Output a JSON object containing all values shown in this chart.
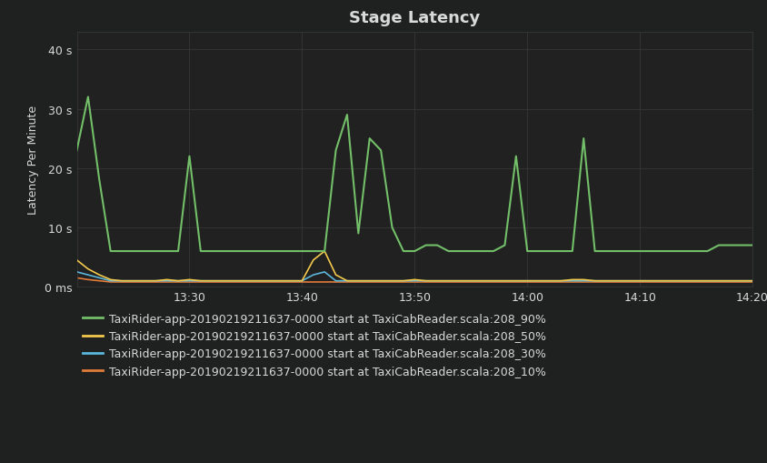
{
  "title": "Stage Latency",
  "ylabel": "Latency Per Minute",
  "background_color": "#1f2020",
  "plot_bg_color": "#212121",
  "grid_color": "#3a3a3a",
  "text_color": "#d8d9d9",
  "title_fontsize": 13,
  "label_fontsize": 9,
  "tick_fontsize": 9,
  "legend_fontsize": 9,
  "yticks": [
    0,
    10,
    20,
    30,
    40
  ],
  "ytick_labels": [
    "0 ms",
    "10 s",
    "20 s",
    "30 s",
    "40 s"
  ],
  "xtick_labels": [
    "13:30",
    "13:40",
    "13:50",
    "14:00",
    "14:10",
    "14:20"
  ],
  "ylim": [
    0,
    43
  ],
  "colors": {
    "p90": "#73bf69",
    "p50": "#f2c94c",
    "p30": "#5bb7db",
    "p10": "#e07b39"
  },
  "labels": {
    "p90": "TaxiRider-app-20190219211637-0000 start at TaxiCabReader.scala:208_90%",
    "p50": "TaxiRider-app-20190219211637-0000 start at TaxiCabReader.scala:208_50%",
    "p30": "TaxiRider-app-20190219211637-0000 start at TaxiCabReader.scala:208_30%",
    "p10": "TaxiRider-app-20190219211637-0000 start at TaxiCabReader.scala:208_10%"
  },
  "p90": [
    23,
    32,
    18,
    6,
    6,
    6,
    6,
    6,
    6,
    6,
    22,
    6,
    6,
    6,
    6,
    6,
    6,
    6,
    6,
    6,
    6,
    6,
    6,
    23,
    29,
    9,
    25,
    23,
    10,
    6,
    6,
    7,
    7,
    6,
    6,
    6,
    6,
    6,
    7,
    22,
    6,
    6,
    6,
    6,
    6,
    25,
    6,
    6,
    6,
    6,
    6,
    6,
    6,
    6,
    6,
    6,
    6,
    7,
    7,
    7,
    7
  ],
  "p50": [
    4.5,
    3,
    2,
    1.2,
    1,
    1,
    1,
    1,
    1.2,
    1,
    1.2,
    1,
    1,
    1,
    1,
    1,
    1,
    1,
    1,
    1,
    1,
    4.5,
    6,
    2,
    1,
    1,
    1,
    1,
    1,
    1,
    1.2,
    1,
    1,
    1,
    1,
    1,
    1,
    1,
    1,
    1,
    1,
    1,
    1,
    1,
    1.2,
    1.2,
    1,
    1,
    1,
    1,
    1,
    1,
    1,
    1,
    1,
    1,
    1,
    1,
    1,
    1,
    1
  ],
  "p30": [
    2.5,
    2,
    1.5,
    1,
    1,
    1,
    1,
    1,
    1,
    1,
    1,
    1,
    1,
    1,
    1,
    1,
    1,
    1,
    1,
    1,
    1,
    2,
    2.5,
    1,
    1,
    1,
    1,
    1,
    1,
    1,
    1,
    1,
    1,
    1,
    1,
    1,
    1,
    1,
    1,
    1,
    1,
    1,
    1,
    1,
    1,
    1,
    1,
    1,
    1,
    1,
    1,
    1,
    1,
    1,
    1,
    1,
    1,
    1,
    1,
    1,
    1
  ],
  "p10": [
    1.5,
    1.2,
    1,
    0.8,
    0.8,
    0.8,
    0.8,
    0.8,
    0.8,
    0.8,
    0.8,
    0.8,
    0.8,
    0.8,
    0.8,
    0.8,
    0.8,
    0.8,
    0.8,
    0.8,
    0.8,
    0.8,
    0.8,
    0.8,
    0.8,
    0.8,
    0.8,
    0.8,
    0.8,
    0.8,
    0.8,
    0.8,
    0.8,
    0.8,
    0.8,
    0.8,
    0.8,
    0.8,
    0.8,
    0.8,
    0.8,
    0.8,
    0.8,
    0.8,
    0.8,
    0.8,
    0.8,
    0.8,
    0.8,
    0.8,
    0.8,
    0.8,
    0.8,
    0.8,
    0.8,
    0.8,
    0.8,
    0.8,
    0.8,
    0.8,
    0.8
  ]
}
